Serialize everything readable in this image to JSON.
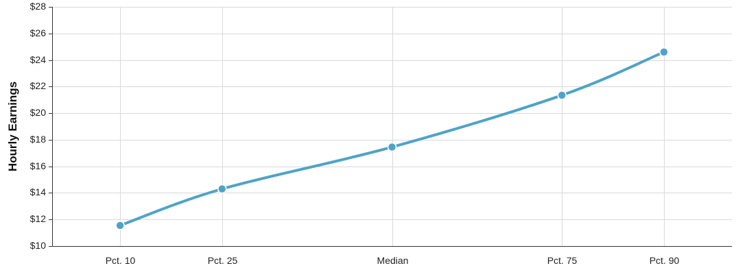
{
  "chart_data": {
    "type": "line",
    "categories": [
      "Pct. 10",
      "Pct. 25",
      "Median",
      "Pct. 75",
      "Pct. 90"
    ],
    "x": [
      10,
      25,
      50,
      75,
      90
    ],
    "values": [
      11.55,
      14.3,
      17.45,
      21.35,
      24.6
    ],
    "ylabel": "Hourly Earnings",
    "xlabel": "",
    "ylim": [
      10,
      28
    ],
    "xlim": [
      0,
      100
    ],
    "yticks": [
      "$10",
      "$12",
      "$14",
      "$16",
      "$18",
      "$20",
      "$22",
      "$24",
      "$26",
      "$28"
    ],
    "grid": true,
    "legend": "none",
    "colors": {
      "series": "#4fa3c8",
      "grid": "#d9d9d9",
      "axis": "#333333"
    }
  }
}
